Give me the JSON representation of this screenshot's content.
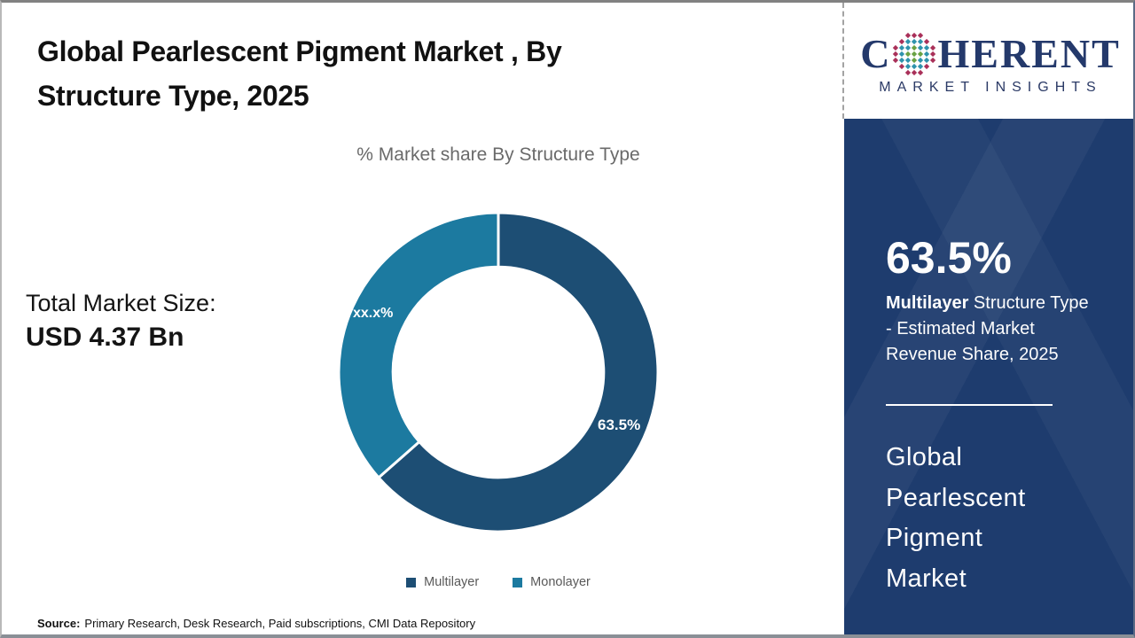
{
  "title": {
    "line1": "Global Pearlescent Pigment Market , By",
    "line2": "Structure Type, 2025"
  },
  "chart_data": {
    "type": "pie",
    "donut": true,
    "title": "% Market share By Structure Type",
    "categories": [
      "Multilayer",
      "Monolayer"
    ],
    "values": [
      63.5,
      36.5
    ],
    "slice_labels": [
      "63.5%",
      "xx.x%"
    ],
    "colors": [
      "#1d4e74",
      "#1c7aa0"
    ],
    "inner_radius_ratio": 0.66,
    "start_angle_deg": 0,
    "legend_position": "bottom"
  },
  "market_size": {
    "label": "Total Market Size:",
    "value": "USD 4.37 Bn"
  },
  "source": {
    "prefix": "Source:",
    "text": "Primary Research, Desk Research, Paid subscriptions, CMI Data Repository"
  },
  "sidebar": {
    "logo": {
      "prefix": "C",
      "suffix": "HERENT",
      "tagline": "MARKET INSIGHTS",
      "globe_icon_colors": {
        "center": "#69a244",
        "mid": "#2f93ad",
        "edge": "#a93059"
      }
    },
    "stat_value": "63.5%",
    "stat_line1_bold": "Multilayer",
    "stat_line1_rest": " Structure Type",
    "stat_line2": "- Estimated Market",
    "stat_line3": "Revenue Share, 2025",
    "market_name_lines": [
      "Global",
      "Pearlescent",
      "Pigment",
      "Market"
    ]
  },
  "colors": {
    "sidebar_bg": "#1e3c6e",
    "slice_multilayer": "#1d4e74",
    "slice_monolayer": "#1c7aa0",
    "logo_navy": "#24396b",
    "subtitle_gray": "#6a6a6a"
  }
}
